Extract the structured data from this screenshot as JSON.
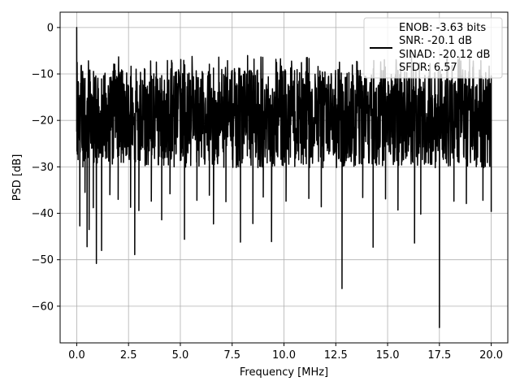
{
  "chart_data": {
    "type": "line",
    "title": "",
    "xlabel": "Frequency [MHz]",
    "ylabel": "PSD [dB]",
    "xlim": [
      -0.8,
      20.8
    ],
    "ylim": [
      -67.9,
      3.3
    ],
    "xticks": [
      0.0,
      2.5,
      5.0,
      7.5,
      10.0,
      12.5,
      15.0,
      17.5,
      20.0
    ],
    "xtick_labels": [
      "0.0",
      "2.5",
      "5.0",
      "7.5",
      "10.0",
      "12.5",
      "15.0",
      "17.5",
      "20.0"
    ],
    "yticks": [
      0,
      -10,
      -20,
      -30,
      -40,
      -50,
      -60
    ],
    "ytick_labels": [
      "0",
      "−10",
      "−20",
      "−30",
      "−40",
      "−50",
      "−60"
    ],
    "grid": true,
    "legend_position": "top-right",
    "series": [
      {
        "color": "#000000",
        "legend_lines": [
          "ENOB: -3.63 bits",
          "SNR: -20.1 dB",
          "SINAD: -20.12 dB",
          "SFDR: 6.57"
        ],
        "dense_noise": {
          "x_range": [
            0.0,
            20.0
          ],
          "center_db": -19,
          "top_db": -9,
          "bottom_db": -33
        },
        "points": [
          [
            0.0,
            0.0
          ],
          [
            0.02,
            -7.5
          ],
          [
            0.05,
            -13
          ],
          [
            0.08,
            -15
          ],
          [
            0.12,
            -22
          ],
          [
            0.15,
            -42.7
          ],
          [
            0.2,
            -17
          ],
          [
            0.3,
            -30
          ],
          [
            0.4,
            -35.5
          ],
          [
            0.5,
            -47.2
          ],
          [
            0.6,
            -43.5
          ],
          [
            0.8,
            -38.8
          ],
          [
            0.95,
            -50.8
          ],
          [
            1.2,
            -48
          ],
          [
            1.6,
            -36
          ],
          [
            2.0,
            -37
          ],
          [
            2.6,
            -38.7
          ],
          [
            2.8,
            -48.9
          ],
          [
            3.0,
            -39.4
          ],
          [
            3.6,
            -37.4
          ],
          [
            4.1,
            -41.4
          ],
          [
            4.5,
            -35.8
          ],
          [
            5.2,
            -45.6
          ],
          [
            5.8,
            -37.2
          ],
          [
            6.4,
            -36.1
          ],
          [
            6.6,
            -42.3
          ],
          [
            7.2,
            -37.5
          ],
          [
            7.9,
            -46.2
          ],
          [
            8.5,
            -42.2
          ],
          [
            9.0,
            -36.5
          ],
          [
            9.4,
            -46.1
          ],
          [
            10.1,
            -37.4
          ],
          [
            11.2,
            -36.8
          ],
          [
            11.8,
            -38.6
          ],
          [
            12.8,
            -56.2
          ],
          [
            13.8,
            -36.6
          ],
          [
            14.3,
            -47.3
          ],
          [
            14.9,
            -36.9
          ],
          [
            15.5,
            -39.3
          ],
          [
            16.3,
            -46.4
          ],
          [
            16.6,
            -40.2
          ],
          [
            17.5,
            -64.6
          ],
          [
            18.2,
            -37.4
          ],
          [
            18.8,
            -37.9
          ],
          [
            19.6,
            -37.2
          ],
          [
            20.0,
            -39.7
          ]
        ]
      }
    ]
  }
}
